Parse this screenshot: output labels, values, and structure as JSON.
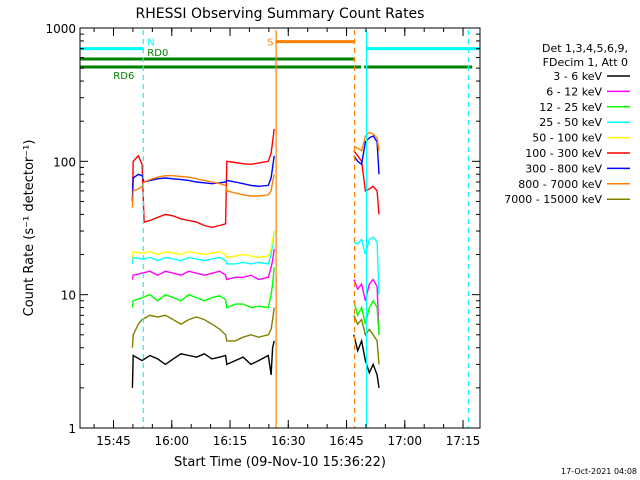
{
  "chart_data": {
    "type": "line",
    "title": "RHESSI Observing Summary Count Rates",
    "xlabel": "Start Time (09-Nov-10 15:36:22)",
    "ylabel": "Count Rate (s⁻¹ detector⁻¹)",
    "x_unit": "minutes after 15:36:22",
    "xlim": [
      0,
      103
    ],
    "ylim": [
      1,
      1000
    ],
    "yscale": "log",
    "x_ticks": [
      {
        "x": 8.63,
        "label": "15:45"
      },
      {
        "x": 23.63,
        "label": "16:00"
      },
      {
        "x": 38.63,
        "label": "16:15"
      },
      {
        "x": 53.63,
        "label": "16:30"
      },
      {
        "x": 68.63,
        "label": "16:45"
      },
      {
        "x": 83.63,
        "label": "17:00"
      },
      {
        "x": 98.63,
        "label": "17:15"
      }
    ],
    "y_ticks": [
      {
        "y": 1,
        "label": "1"
      },
      {
        "y": 10,
        "label": "10"
      },
      {
        "y": 100,
        "label": "100"
      },
      {
        "y": 1000,
        "label": "1000"
      }
    ],
    "legend": {
      "placement": "top-right outside",
      "header": [
        "Det 1,3,4,5,6,9,",
        "FDecim 1, Att 0"
      ]
    },
    "series": [
      {
        "name": "3 - 6 keV",
        "color": "#000000",
        "points": [
          [
            13.5,
            2
          ],
          [
            13.7,
            3.5
          ],
          [
            16,
            3.2
          ],
          [
            18,
            3.5
          ],
          [
            20,
            3.3
          ],
          [
            22,
            3
          ],
          [
            24,
            3.3
          ],
          [
            26,
            3.6
          ],
          [
            28,
            3.5
          ],
          [
            30,
            3.4
          ],
          [
            32,
            3.6
          ],
          [
            34,
            3.3
          ],
          [
            36,
            3.4
          ],
          [
            37.5,
            3.5
          ],
          [
            37.8,
            3.0
          ],
          [
            40,
            3.2
          ],
          [
            42,
            3.4
          ],
          [
            44,
            3.0
          ],
          [
            46,
            3.2
          ],
          [
            48.5,
            3.5
          ],
          [
            49.2,
            2.5
          ],
          [
            49.6,
            4
          ],
          [
            50,
            4.5
          ],
          [
            70.5,
            5
          ],
          [
            71.5,
            3.8
          ],
          [
            72.5,
            4.5
          ],
          [
            73.5,
            3.2
          ],
          [
            74.5,
            2.6
          ],
          [
            75.5,
            3
          ],
          [
            76.5,
            2.5
          ],
          [
            77,
            2
          ]
        ]
      },
      {
        "name": "6 - 12 keV",
        "color": "#ff00ff",
        "points": [
          [
            13.5,
            13
          ],
          [
            13.7,
            14
          ],
          [
            16,
            14.5
          ],
          [
            18,
            15
          ],
          [
            20,
            14
          ],
          [
            22,
            15
          ],
          [
            24,
            14.5
          ],
          [
            26,
            14
          ],
          [
            28,
            15
          ],
          [
            30,
            14.5
          ],
          [
            32,
            14
          ],
          [
            34,
            14.5
          ],
          [
            36,
            15
          ],
          [
            37.5,
            14
          ],
          [
            37.8,
            13
          ],
          [
            40,
            13.5
          ],
          [
            42,
            13.5
          ],
          [
            44,
            14
          ],
          [
            46,
            13
          ],
          [
            48.5,
            13.5
          ],
          [
            49.2,
            16
          ],
          [
            49.6,
            18
          ],
          [
            50,
            22
          ],
          [
            70.5,
            13
          ],
          [
            71.5,
            11
          ],
          [
            72.5,
            12
          ],
          [
            73.5,
            9
          ],
          [
            74.5,
            12
          ],
          [
            75.5,
            13
          ],
          [
            76.5,
            11.5
          ],
          [
            77,
            5
          ]
        ]
      },
      {
        "name": "12 - 25 keV",
        "color": "#00ff00",
        "points": [
          [
            13.5,
            8
          ],
          [
            13.7,
            9
          ],
          [
            16,
            9.5
          ],
          [
            18,
            10
          ],
          [
            20,
            9
          ],
          [
            22,
            10
          ],
          [
            24,
            9.5
          ],
          [
            26,
            9
          ],
          [
            28,
            10
          ],
          [
            30,
            9.5
          ],
          [
            32,
            9
          ],
          [
            34,
            9.5
          ],
          [
            36,
            9.8
          ],
          [
            37.5,
            9.2
          ],
          [
            37.8,
            8
          ],
          [
            40,
            8.5
          ],
          [
            42,
            8.5
          ],
          [
            44,
            8
          ],
          [
            46,
            8.2
          ],
          [
            48.5,
            8
          ],
          [
            49.2,
            10
          ],
          [
            49.6,
            12
          ],
          [
            50,
            16
          ],
          [
            70.5,
            9
          ],
          [
            71.5,
            7
          ],
          [
            72.5,
            8
          ],
          [
            73.5,
            6
          ],
          [
            74.5,
            8
          ],
          [
            75.5,
            9
          ],
          [
            76.5,
            8
          ],
          [
            77,
            5
          ]
        ]
      },
      {
        "name": "25 - 50 keV",
        "color": "#00ffff",
        "points": [
          [
            13.5,
            17
          ],
          [
            13.7,
            19
          ],
          [
            16,
            18.5
          ],
          [
            18,
            19
          ],
          [
            20,
            18
          ],
          [
            22,
            19
          ],
          [
            24,
            18.5
          ],
          [
            26,
            18
          ],
          [
            28,
            19
          ],
          [
            30,
            18.5
          ],
          [
            32,
            18
          ],
          [
            34,
            18.5
          ],
          [
            36,
            19
          ],
          [
            37.5,
            18
          ],
          [
            37.8,
            17
          ],
          [
            40,
            17
          ],
          [
            42,
            17.5
          ],
          [
            44,
            17
          ],
          [
            46,
            17.5
          ],
          [
            48.5,
            17
          ],
          [
            49.2,
            20
          ],
          [
            49.6,
            24
          ],
          [
            50,
            30
          ],
          [
            70.5,
            25
          ],
          [
            71.5,
            24
          ],
          [
            72.5,
            26
          ],
          [
            73.5,
            20
          ],
          [
            74.5,
            26
          ],
          [
            75.5,
            27
          ],
          [
            76.5,
            25
          ],
          [
            77,
            10
          ]
        ]
      },
      {
        "name": "50 - 100 keV",
        "color": "#ffff00",
        "points": [
          [
            13.5,
            19
          ],
          [
            13.7,
            21
          ],
          [
            16,
            20.5
          ],
          [
            18,
            21
          ],
          [
            20,
            20
          ],
          [
            22,
            21
          ],
          [
            24,
            20.5
          ],
          [
            26,
            20
          ],
          [
            28,
            21
          ],
          [
            30,
            20.5
          ],
          [
            32,
            20
          ],
          [
            34,
            20.5
          ],
          [
            36,
            21
          ],
          [
            37.5,
            20
          ],
          [
            37.8,
            19
          ],
          [
            40,
            19.5
          ],
          [
            42,
            20
          ],
          [
            44,
            19.5
          ],
          [
            46,
            19
          ],
          [
            48.5,
            19.5
          ],
          [
            49.2,
            22
          ],
          [
            49.6,
            26
          ],
          [
            50,
            30
          ]
        ]
      },
      {
        "name": "100 - 300 keV",
        "color": "#ff0000",
        "points": [
          [
            13.5,
            50
          ],
          [
            13.7,
            100
          ],
          [
            15,
            110
          ],
          [
            16,
            95
          ],
          [
            16.5,
            35
          ],
          [
            18,
            36
          ],
          [
            20,
            38
          ],
          [
            22,
            40
          ],
          [
            24,
            39
          ],
          [
            26,
            37
          ],
          [
            28,
            36
          ],
          [
            30,
            35
          ],
          [
            32,
            33
          ],
          [
            34,
            32
          ],
          [
            36,
            33
          ],
          [
            37.5,
            34
          ],
          [
            37.8,
            100
          ],
          [
            40,
            98
          ],
          [
            42,
            96
          ],
          [
            44,
            95
          ],
          [
            46,
            97
          ],
          [
            48.5,
            100
          ],
          [
            49.2,
            115
          ],
          [
            49.6,
            140
          ],
          [
            50,
            175
          ],
          [
            70.5,
            120
          ],
          [
            71.5,
            110
          ],
          [
            72.5,
            100
          ],
          [
            73.5,
            60
          ],
          [
            74.5,
            62
          ],
          [
            75.5,
            65
          ],
          [
            76.5,
            60
          ],
          [
            77,
            40
          ]
        ]
      },
      {
        "name": "300 - 800 keV",
        "color": "#0000ff",
        "points": [
          [
            13.5,
            50
          ],
          [
            13.7,
            75
          ],
          [
            15,
            80
          ],
          [
            16,
            78
          ],
          [
            16.5,
            70
          ],
          [
            18,
            72
          ],
          [
            20,
            74
          ],
          [
            22,
            75
          ],
          [
            24,
            74
          ],
          [
            26,
            73
          ],
          [
            28,
            72
          ],
          [
            30,
            70
          ],
          [
            32,
            69
          ],
          [
            34,
            68
          ],
          [
            36,
            69
          ],
          [
            37.5,
            70
          ],
          [
            37.8,
            72
          ],
          [
            40,
            70
          ],
          [
            42,
            68
          ],
          [
            44,
            66
          ],
          [
            46,
            65
          ],
          [
            48.5,
            66
          ],
          [
            49.2,
            75
          ],
          [
            49.6,
            90
          ],
          [
            50,
            110
          ],
          [
            70.5,
            110
          ],
          [
            71.5,
            100
          ],
          [
            72.5,
            95
          ],
          [
            73.5,
            140
          ],
          [
            74.5,
            150
          ],
          [
            75.5,
            155
          ],
          [
            76.5,
            140
          ],
          [
            77,
            80
          ]
        ]
      },
      {
        "name": "800 - 7000 keV",
        "color": "#ff8000",
        "points": [
          [
            13.5,
            45
          ],
          [
            13.7,
            60
          ],
          [
            15,
            62
          ],
          [
            16,
            65
          ],
          [
            16.5,
            70
          ],
          [
            18,
            73
          ],
          [
            20,
            76
          ],
          [
            22,
            78
          ],
          [
            24,
            78
          ],
          [
            26,
            77
          ],
          [
            28,
            76
          ],
          [
            30,
            74
          ],
          [
            32,
            72
          ],
          [
            34,
            70
          ],
          [
            36,
            68
          ],
          [
            37.5,
            66
          ],
          [
            37.8,
            60
          ],
          [
            40,
            58
          ],
          [
            42,
            56
          ],
          [
            44,
            55
          ],
          [
            46,
            55
          ],
          [
            48.5,
            56
          ],
          [
            49.2,
            60
          ],
          [
            49.6,
            70
          ],
          [
            50,
            80
          ],
          [
            70.5,
            130
          ],
          [
            71.5,
            125
          ],
          [
            72.5,
            120
          ],
          [
            73.5,
            155
          ],
          [
            74.5,
            165
          ],
          [
            75.5,
            160
          ],
          [
            76.5,
            150
          ],
          [
            77,
            120
          ]
        ]
      },
      {
        "name": "7000 - 15000 keV",
        "color": "#808000",
        "points": [
          [
            13.5,
            4
          ],
          [
            13.7,
            5
          ],
          [
            15,
            6
          ],
          [
            16,
            6.5
          ],
          [
            18,
            7
          ],
          [
            20,
            6.8
          ],
          [
            22,
            7
          ],
          [
            24,
            6.5
          ],
          [
            26,
            6
          ],
          [
            28,
            6.5
          ],
          [
            30,
            6.8
          ],
          [
            32,
            6.5
          ],
          [
            34,
            6
          ],
          [
            36,
            5.5
          ],
          [
            37.5,
            5
          ],
          [
            37.8,
            4.5
          ],
          [
            40,
            4.5
          ],
          [
            42,
            4.8
          ],
          [
            44,
            5
          ],
          [
            46,
            4.8
          ],
          [
            48.5,
            5
          ],
          [
            49.2,
            5.5
          ],
          [
            49.6,
            6.5
          ],
          [
            50,
            8
          ],
          [
            70.5,
            7
          ],
          [
            71.5,
            6
          ],
          [
            72.5,
            6.5
          ],
          [
            73.5,
            5
          ],
          [
            74.5,
            5.5
          ],
          [
            75.5,
            5
          ],
          [
            76.5,
            4.5
          ],
          [
            77,
            3
          ]
        ]
      }
    ],
    "annotations": [
      {
        "label": "N",
        "color": "#00ffff",
        "x_start": 0,
        "x_end": 16.3,
        "level": 700
      },
      {
        "label": "",
        "color": "#00ffff",
        "x_start": 73.8,
        "x_end": 103,
        "level": 700
      },
      {
        "label": "S",
        "color": "#ff8000",
        "x_start": 50.5,
        "x_end": 70.7,
        "level": 790
      },
      {
        "label": "RD0",
        "color": "#008000",
        "x_start": 0,
        "x_end": 70.5,
        "level": 585
      },
      {
        "label": "RD6",
        "color": "#008000",
        "x_start": 0,
        "x_end": 101,
        "level": 510
      }
    ],
    "vlines": [
      {
        "x": 16.3,
        "color": "#00ffff",
        "dashed": true
      },
      {
        "x": 73.8,
        "color": "#00ffff",
        "dashed": false
      },
      {
        "x": 100,
        "color": "#00ffff",
        "dashed": true
      },
      {
        "x": 50.5,
        "color": "#ff8000",
        "dashed": false
      },
      {
        "x": 70.7,
        "color": "#ff8000",
        "dashed": true
      }
    ]
  },
  "footer": {
    "timestamp": "17-Oct-2021 04:08"
  }
}
